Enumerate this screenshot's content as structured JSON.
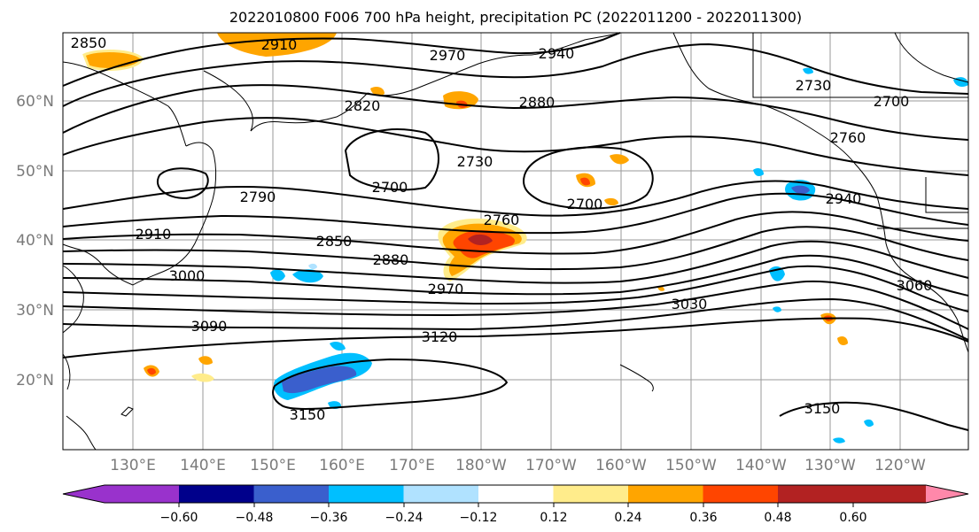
{
  "title": "2022010800 F006 700 hPa height, precipitation PC (2022011200 - 2022011300)",
  "map": {
    "lat_labels": [
      "60°N",
      "50°N",
      "40°N",
      "30°N",
      "20°N"
    ],
    "lon_labels": [
      "130°E",
      "140°E",
      "150°E",
      "160°E",
      "170°E",
      "180°W",
      "170°W",
      "160°W",
      "150°W",
      "140°W",
      "130°W",
      "120°W"
    ],
    "contour_labels": [
      "2850",
      "2910",
      "2970",
      "2940",
      "2880",
      "2820",
      "2730",
      "2700",
      "2760",
      "2700",
      "2730",
      "2700",
      "2790",
      "2760",
      "2940",
      "2910",
      "2850",
      "2880",
      "3000",
      "2970",
      "3030",
      "3060",
      "3090",
      "3120",
      "3150",
      "3150"
    ]
  },
  "colorbar": {
    "ticks": [
      "−0.60",
      "−0.48",
      "−0.36",
      "−0.24",
      "−0.12",
      "0.12",
      "0.24",
      "0.36",
      "0.48",
      "0.60"
    ],
    "colors": [
      "#9932cc",
      "#00008b",
      "#3a5fcd",
      "#00bfff",
      "#b0e2ff",
      "#ffffff",
      "#ffec8b",
      "#ffa500",
      "#ff4500",
      "#b22222",
      "#ff88aa"
    ]
  }
}
